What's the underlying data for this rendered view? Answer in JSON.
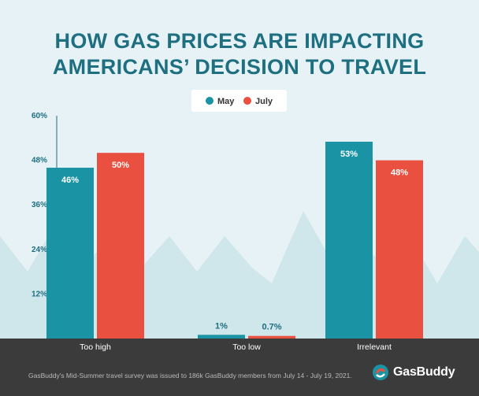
{
  "title_line1": "HOW GAS PRICES ARE IMPACTING",
  "title_line2": "AMERICANS’ DECISION TO TRAVEL",
  "footnote": "GasBuddy's Mid-Summer travel survey was issued to 186k GasBuddy members from July 14 - July 19, 2021.",
  "brand": "GasBuddy",
  "icons": [
    "gasbuddy-logo-icon"
  ],
  "colors": {
    "may": "#1a93a5",
    "july": "#e9503f",
    "title": "#1e6f80",
    "footer": "#3b3b3b",
    "background": "#e6f2f5"
  },
  "chart_data": {
    "type": "bar",
    "categories": [
      "Too high",
      "Too low",
      "Irrelevant"
    ],
    "series": [
      {
        "name": "May",
        "values": [
          46,
          1,
          53
        ],
        "labels": [
          "46%",
          "1%",
          "53%"
        ],
        "color": "#1a93a5"
      },
      {
        "name": "July",
        "values": [
          50,
          0.7,
          48
        ],
        "labels": [
          "50%",
          "0.7%",
          "48%"
        ],
        "color": "#e9503f"
      }
    ],
    "yticks": [
      "60%",
      "48%",
      "36%",
      "24%",
      "12%"
    ],
    "ytick_values": [
      60,
      48,
      36,
      24,
      12
    ],
    "ylim": [
      0,
      60
    ],
    "legend_position": "top-center",
    "grid": false
  }
}
